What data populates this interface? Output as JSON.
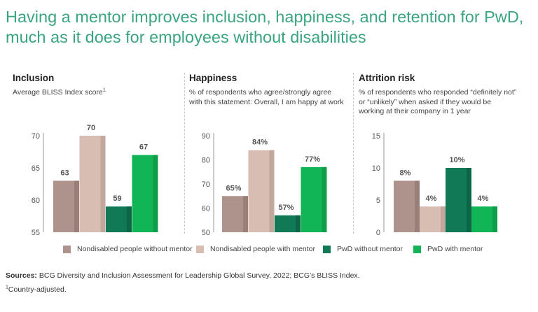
{
  "title": {
    "line1": "Having a mentor improves inclusion, happiness, and retention for PwD,",
    "line2": "much as it does for employees without disabilities"
  },
  "colors": {
    "title": "#3aa57f",
    "series": [
      "#ad938c",
      "#d7bdb2",
      "#0f7a55",
      "#12b556"
    ],
    "series_shade": [
      "#9a7f79",
      "#c2a79d",
      "#0a6646",
      "#0e9e49"
    ]
  },
  "chart_data": [
    {
      "type": "bar",
      "title": "Inclusion",
      "subtitle": "Average BLISS Index score",
      "subtitle_sup": "1",
      "ylim": [
        55,
        70
      ],
      "yticks": [
        55,
        60,
        65,
        70
      ],
      "categories": [
        "Nondisabled people without mentor",
        "Nondisabled people with mentor",
        "PwD without mentor",
        "PwD with mentor"
      ],
      "values": [
        63,
        70,
        59,
        67
      ],
      "labels": [
        "63",
        "70",
        "59",
        "67"
      ]
    },
    {
      "type": "bar",
      "title": "Happiness",
      "subtitle_lines": [
        "% of respondents who agree/strongly agree",
        "with this statement: Overall, I am happy at work"
      ],
      "ylim": [
        50,
        90
      ],
      "yticks": [
        50,
        60,
        70,
        80,
        90
      ],
      "categories": [
        "Nondisabled people without mentor",
        "Nondisabled people with mentor",
        "PwD without mentor",
        "PwD with mentor"
      ],
      "values": [
        65,
        84,
        57,
        77
      ],
      "labels": [
        "65%",
        "84%",
        "57%",
        "77%"
      ]
    },
    {
      "type": "bar",
      "title": "Attrition risk",
      "subtitle_lines": [
        "% of respondents who responded “definitely not”",
        "or “unlikely” when asked if they would be",
        "working at their company in 1 year"
      ],
      "ylim": [
        0,
        15
      ],
      "yticks": [
        0,
        5,
        10,
        15
      ],
      "categories": [
        "Nondisabled people without mentor",
        "Nondisabled people with mentor",
        "PwD without mentor",
        "PwD with mentor"
      ],
      "values": [
        8,
        4,
        10,
        4
      ],
      "labels": [
        "8%",
        "4%",
        "10%",
        "4%"
      ]
    }
  ],
  "legend": [
    "Nondisabled people without mentor",
    "Nondisabled people with mentor",
    "PwD without mentor",
    "PwD with mentor"
  ],
  "sources": {
    "label": "Sources:",
    "text": " BCG Diversity and Inclusion Assessment for Leadership Global Survey, 2022; BCG’s BLISS Index."
  },
  "footnote": {
    "sup": "1",
    "text": "Country-adjusted."
  }
}
